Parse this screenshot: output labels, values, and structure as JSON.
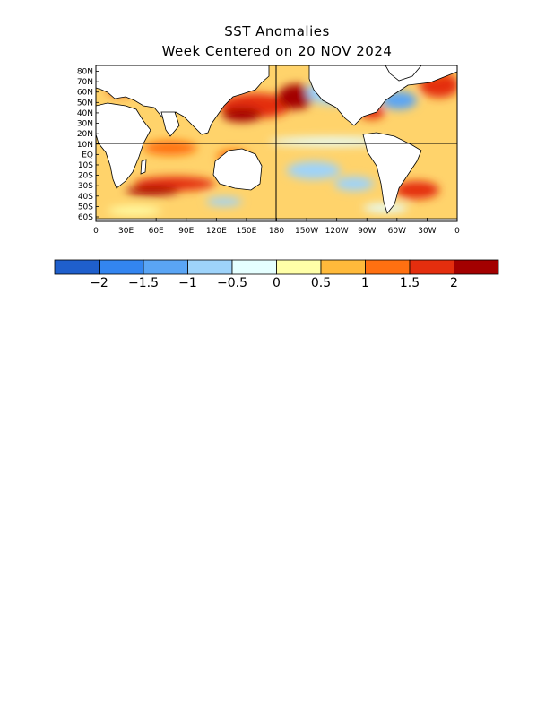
{
  "title": "SST Anomalies",
  "subtitle": "Week Centered on 20 NOV 2024",
  "map": {
    "lat_labels": [
      "80N",
      "70N",
      "60N",
      "50N",
      "40N",
      "30N",
      "20N",
      "10N",
      "EQ",
      "10S",
      "20S",
      "30S",
      "40S",
      "50S",
      "60S"
    ],
    "lon_labels": [
      "0",
      "30E",
      "60E",
      "90E",
      "120E",
      "150E",
      "180",
      "150W",
      "120W",
      "90W",
      "60W",
      "30W",
      "0"
    ],
    "ocean_base_color": "#ffd36b",
    "land_color": "#ffffff",
    "coast_color": "#000000"
  },
  "colorbar": {
    "colors": [
      "#1f5fcc",
      "#3385f0",
      "#5aa5f5",
      "#9ed3fa",
      "#e5ffff",
      "#ffffa8",
      "#ffba3b",
      "#ff7011",
      "#e42e0e",
      "#a30000"
    ],
    "tick_labels": [
      "−2",
      "−1.5",
      "−1",
      "−0.5",
      "0",
      "0.5",
      "1",
      "1.5",
      "2"
    ]
  }
}
